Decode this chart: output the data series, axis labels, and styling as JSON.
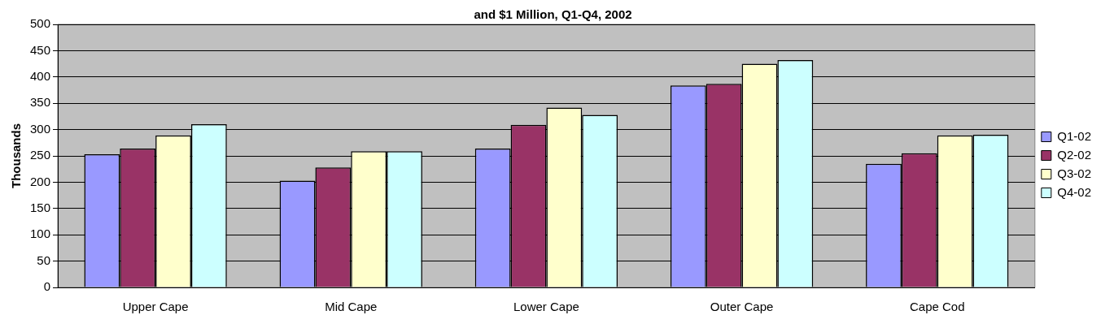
{
  "chart_data": {
    "type": "bar",
    "title": "and $1 Million, Q1-Q4, 2002",
    "ylabel": "Thousands",
    "categories": [
      "Upper Cape",
      "Mid Cape",
      "Lower Cape",
      "Outer Cape",
      "Cape Cod"
    ],
    "series": [
      {
        "name": "Q1-02",
        "color": "#9999ff",
        "values": [
          253,
          203,
          264,
          384,
          235
        ]
      },
      {
        "name": "Q2-02",
        "color": "#993366",
        "values": [
          264,
          228,
          309,
          387,
          255
        ]
      },
      {
        "name": "Q3-02",
        "color": "#ffffcc",
        "values": [
          289,
          259,
          342,
          425,
          289
        ]
      },
      {
        "name": "Q4-02",
        "color": "#ccffff",
        "values": [
          310,
          259,
          328,
          432,
          290
        ]
      }
    ],
    "ylim": [
      0,
      500
    ],
    "yticks": [
      0,
      50,
      100,
      150,
      200,
      250,
      300,
      350,
      400,
      450,
      500
    ],
    "grid": "y",
    "legend": "right"
  }
}
